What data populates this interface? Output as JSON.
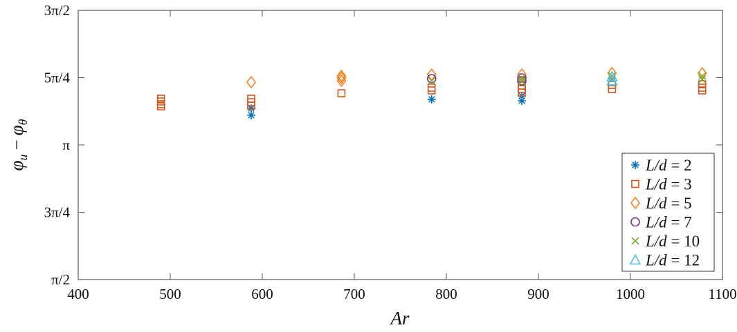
{
  "chart_data": {
    "type": "scatter",
    "title": "",
    "xlabel": "Ar",
    "ylabel": "φu − φθ",
    "xlim": [
      400,
      1100
    ],
    "ylim": [
      1.5707963,
      4.712389
    ],
    "xticks": [
      400,
      500,
      600,
      700,
      800,
      900,
      1000,
      1100
    ],
    "xtick_labels": [
      "400",
      "500",
      "600",
      "700",
      "800",
      "900",
      "1000",
      "1100"
    ],
    "yticks": [
      1.5707963,
      2.3561945,
      3.1415927,
      3.9269908,
      4.712389
    ],
    "ytick_labels": [
      "π/2",
      "3π/4",
      "π",
      "5π/4",
      "3π/2"
    ],
    "grid": false,
    "legend_position": "lower right",
    "series": [
      {
        "name": "L/d = 2",
        "marker": "asterisk",
        "color": "#0072BD",
        "points": [
          [
            588,
            3.568
          ],
          [
            588,
            3.488
          ],
          [
            784,
            3.673
          ],
          [
            882,
            3.713
          ],
          [
            882,
            3.657
          ]
        ]
      },
      {
        "name": "L/d = 3",
        "marker": "square",
        "color": "#D95319",
        "points": [
          [
            490,
            3.681
          ],
          [
            490,
            3.649
          ],
          [
            490,
            3.617
          ],
          [
            490,
            3.592
          ],
          [
            588,
            3.681
          ],
          [
            588,
            3.641
          ],
          [
            588,
            3.6
          ],
          [
            686,
            3.745
          ],
          [
            784,
            3.81
          ],
          [
            784,
            3.778
          ],
          [
            882,
            3.834
          ],
          [
            882,
            3.794
          ],
          [
            882,
            3.753
          ],
          [
            980,
            3.842
          ],
          [
            980,
            3.794
          ],
          [
            1078,
            3.85
          ],
          [
            1078,
            3.81
          ],
          [
            1078,
            3.778
          ]
        ]
      },
      {
        "name": "L/d = 5",
        "marker": "diamond",
        "color": "#F28522",
        "points": [
          [
            588,
            3.874
          ],
          [
            686,
            3.947
          ],
          [
            686,
            3.923
          ],
          [
            686,
            3.89
          ],
          [
            784,
            3.963
          ],
          [
            882,
            3.963
          ],
          [
            980,
            3.979
          ],
          [
            1078,
            3.979
          ]
        ]
      },
      {
        "name": "L/d = 7",
        "marker": "circle",
        "color": "#7E2F8E",
        "points": [
          [
            784,
            3.915
          ],
          [
            882,
            3.923
          ],
          [
            882,
            3.89
          ]
        ]
      },
      {
        "name": "L/d = 10",
        "marker": "x",
        "color": "#77AC30",
        "points": [
          [
            784,
            3.89
          ],
          [
            882,
            3.923
          ],
          [
            882,
            3.882
          ],
          [
            980,
            3.947
          ],
          [
            980,
            3.907
          ],
          [
            1078,
            3.947
          ],
          [
            1078,
            3.907
          ]
        ]
      },
      {
        "name": "L/d = 12",
        "marker": "triangle",
        "color": "#4DBEEE",
        "points": [
          [
            980,
            3.939
          ],
          [
            980,
            3.89
          ]
        ]
      }
    ]
  },
  "legend": {
    "items": [
      {
        "label_var": "L/d",
        "value": "2"
      },
      {
        "label_var": "L/d",
        "value": "3"
      },
      {
        "label_var": "L/d",
        "value": "5"
      },
      {
        "label_var": "L/d",
        "value": "7"
      },
      {
        "label_var": "L/d",
        "value": "10"
      },
      {
        "label_var": "L/d",
        "value": "12"
      }
    ]
  },
  "axes": {
    "x_title": "Ar",
    "y_title_main": "φ",
    "y_title_sub1": "u",
    "y_title_minus": "−",
    "y_title_sub2": "θ"
  }
}
